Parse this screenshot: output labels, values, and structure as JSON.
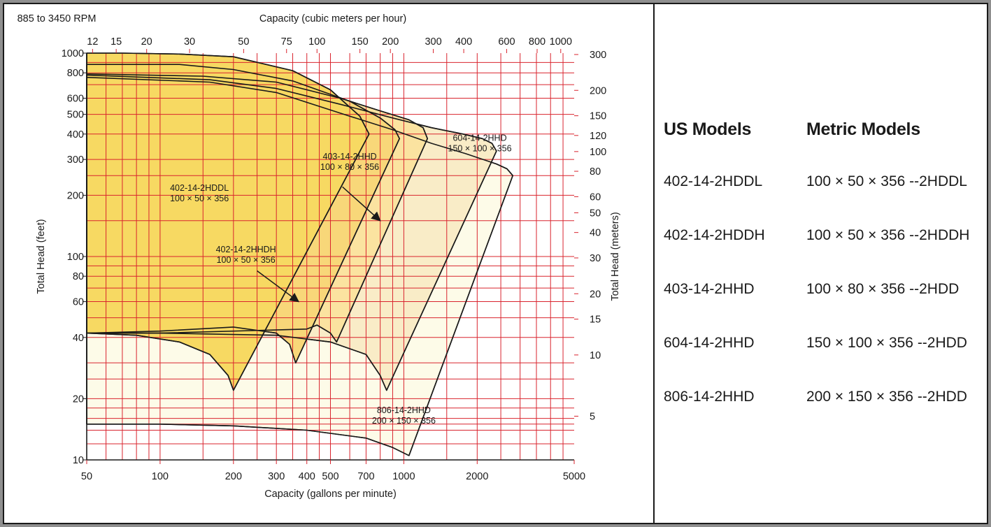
{
  "chart_data": {
    "type": "area",
    "title": "885 to 3450 RPM",
    "top_axis": {
      "label": "Capacity (cubic meters per hour)",
      "ticks": [
        "12",
        "15",
        "20",
        "30",
        "50",
        "75",
        "100",
        "150",
        "200",
        "300",
        "400",
        "600",
        "800",
        "1000"
      ]
    },
    "bottom_axis": {
      "label": "Capacity (gallons per minute)",
      "scale": "log",
      "range": [
        50,
        5000
      ],
      "ticks": [
        "50",
        "100",
        "200",
        "300",
        "400",
        "500",
        "700",
        "1000",
        "2000",
        "5000"
      ]
    },
    "left_axis": {
      "label": "Total Head (feet)",
      "scale": "log",
      "range": [
        10,
        1000
      ],
      "ticks": [
        "1000",
        "800",
        "600",
        "500",
        "400",
        "300",
        "200",
        "100",
        "80",
        "60",
        "40",
        "20",
        "10"
      ]
    },
    "right_axis": {
      "label": "Total Head (meters)",
      "ticks": [
        "300",
        "200",
        "150",
        "120",
        "100",
        "80",
        "60",
        "50",
        "40",
        "30",
        "20",
        "15",
        "10",
        "5"
      ]
    },
    "grid": true,
    "grid_color": "#d9242e",
    "regions": [
      {
        "name": "806-14-2HHD",
        "sub": "200 × 150 × 356",
        "color": "#fdfbe8",
        "label_at": {
          "gpm": 1000,
          "ft": 17
        },
        "outline": [
          [
            50,
            15
          ],
          [
            50,
            760
          ],
          [
            160,
            720
          ],
          [
            300,
            640
          ],
          [
            600,
            490
          ],
          [
            900,
            420
          ],
          [
            1300,
            360
          ],
          [
            1800,
            320
          ],
          [
            2400,
            285
          ],
          [
            2650,
            270
          ],
          [
            2800,
            250
          ],
          [
            1050,
            10.5
          ],
          [
            900,
            11.5
          ],
          [
            700,
            12.8
          ],
          [
            400,
            14
          ],
          [
            200,
            14.7
          ],
          [
            100,
            15
          ],
          [
            50,
            15
          ]
        ]
      },
      {
        "name": "604-14-2HHD",
        "sub": "150 × 100 × 356",
        "color": "#f9ecc7",
        "label_at": {
          "gpm": 2050,
          "ft": 370
        },
        "outline": [
          [
            50,
            42
          ],
          [
            50,
            780
          ],
          [
            160,
            740
          ],
          [
            300,
            670
          ],
          [
            550,
            560
          ],
          [
            900,
            480
          ],
          [
            1300,
            430
          ],
          [
            1750,
            400
          ],
          [
            2100,
            380
          ],
          [
            2300,
            360
          ],
          [
            2400,
            330
          ],
          [
            850,
            22
          ],
          [
            800,
            26
          ],
          [
            700,
            33
          ],
          [
            500,
            38
          ],
          [
            300,
            41
          ],
          [
            100,
            42
          ],
          [
            50,
            42
          ]
        ]
      },
      {
        "name": "403-14-2HHD",
        "sub": "100 × 80 × 356",
        "color": "#fbe3a0",
        "label_at": {
          "gpm": 600,
          "ft": 300
        },
        "outline": [
          [
            50,
            42
          ],
          [
            50,
            790
          ],
          [
            150,
            770
          ],
          [
            300,
            720
          ],
          [
            550,
            600
          ],
          [
            800,
            520
          ],
          [
            1050,
            470
          ],
          [
            1200,
            430
          ],
          [
            1250,
            380
          ],
          [
            530,
            38
          ],
          [
            500,
            42
          ],
          [
            440,
            46
          ],
          [
            400,
            44
          ],
          [
            100,
            42
          ],
          [
            50,
            42
          ]
        ]
      },
      {
        "name": "402-14-2HHDH",
        "sub": "100 × 50 × 356",
        "color": "#f8d779",
        "label_at": {
          "gpm": 225,
          "ft": 105
        },
        "outline": [
          [
            50,
            42
          ],
          [
            50,
            880
          ],
          [
            120,
            880
          ],
          [
            200,
            830
          ],
          [
            350,
            730
          ],
          [
            600,
            580
          ],
          [
            800,
            480
          ],
          [
            920,
            420
          ],
          [
            960,
            380
          ],
          [
            360,
            30
          ],
          [
            340,
            37
          ],
          [
            300,
            42
          ],
          [
            200,
            45
          ],
          [
            100,
            43
          ],
          [
            50,
            42
          ]
        ]
      },
      {
        "name": "402-14-2HDDL",
        "sub": "100 × 50 × 356",
        "color": "#f7d962",
        "label_at": {
          "gpm": 145,
          "ft": 210
        },
        "outline": [
          [
            50,
            42
          ],
          [
            50,
            1000
          ],
          [
            70,
            1000
          ],
          [
            120,
            990
          ],
          [
            200,
            960
          ],
          [
            350,
            820
          ],
          [
            500,
            660
          ],
          [
            660,
            490
          ],
          [
            720,
            400
          ],
          [
            200,
            22
          ],
          [
            190,
            26
          ],
          [
            160,
            33
          ],
          [
            120,
            38
          ],
          [
            80,
            41
          ],
          [
            50,
            42
          ]
        ]
      }
    ],
    "arrows": [
      {
        "from": {
          "gpm": 560,
          "ft": 220
        },
        "to": {
          "gpm": 800,
          "ft": 150
        }
      },
      {
        "from": {
          "gpm": 250,
          "ft": 85
        },
        "to": {
          "gpm": 370,
          "ft": 60
        }
      }
    ]
  },
  "models_table": {
    "header_us": "US Models",
    "header_metric": "Metric Models",
    "rows": [
      {
        "us": "402-14-2HDDL",
        "metric": "100 × 50 × 356 --2HDDL"
      },
      {
        "us": "402-14-2HDDH",
        "metric": "100 × 50 × 356 --2HDDH"
      },
      {
        "us": "403-14-2HHD",
        "metric": "100 × 80 × 356 --2HDD"
      },
      {
        "us": "604-14-2HHD",
        "metric": "150 × 100 × 356 --2HDD"
      },
      {
        "us": "806-14-2HHD",
        "metric": "200 × 150 × 356 --2HDD"
      }
    ]
  }
}
